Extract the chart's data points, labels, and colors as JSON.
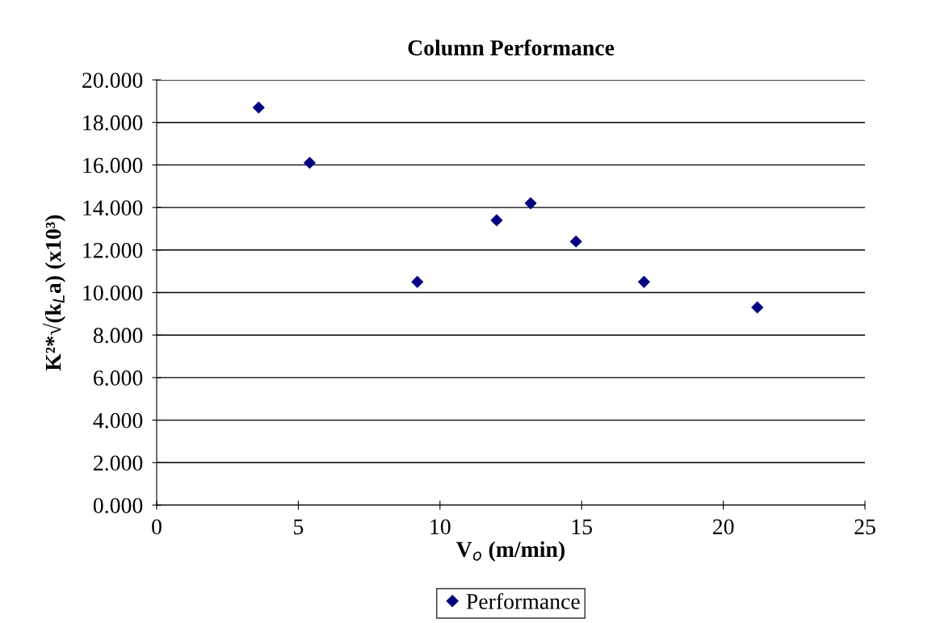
{
  "chart_data": {
    "type": "scatter",
    "title": "Column Performance",
    "xlabel": "V$_{o}$ (m/min)",
    "ylabel": "K²*√(k$_{L}$a) (x10³)",
    "x": [
      3.6,
      5.4,
      9.2,
      12.0,
      13.2,
      14.8,
      17.2,
      21.2
    ],
    "series": [
      {
        "name": "Performance",
        "color": "#000080",
        "values": [
          18.7,
          16.1,
          10.5,
          13.4,
          14.2,
          12.4,
          10.5,
          9.3
        ]
      }
    ],
    "xlim": [
      0,
      25
    ],
    "xticks": [
      0,
      5,
      10,
      15,
      20,
      25
    ],
    "ylim": [
      0,
      20
    ],
    "yticks": [
      {
        "value": 0,
        "label": "0.000"
      },
      {
        "value": 2,
        "label": "2.000"
      },
      {
        "value": 4,
        "label": "4.000"
      },
      {
        "value": 6,
        "label": "6.000"
      },
      {
        "value": 8,
        "label": "8.000"
      },
      {
        "value": 10,
        "label": "10.000"
      },
      {
        "value": 12,
        "label": "12.000"
      },
      {
        "value": 14,
        "label": "14.000"
      },
      {
        "value": 16,
        "label": "16.000"
      },
      {
        "value": 18,
        "label": "18.000"
      },
      {
        "value": 20,
        "label": "20.000"
      }
    ],
    "grid": "y",
    "legend": "bottom",
    "marker": "diamond"
  }
}
